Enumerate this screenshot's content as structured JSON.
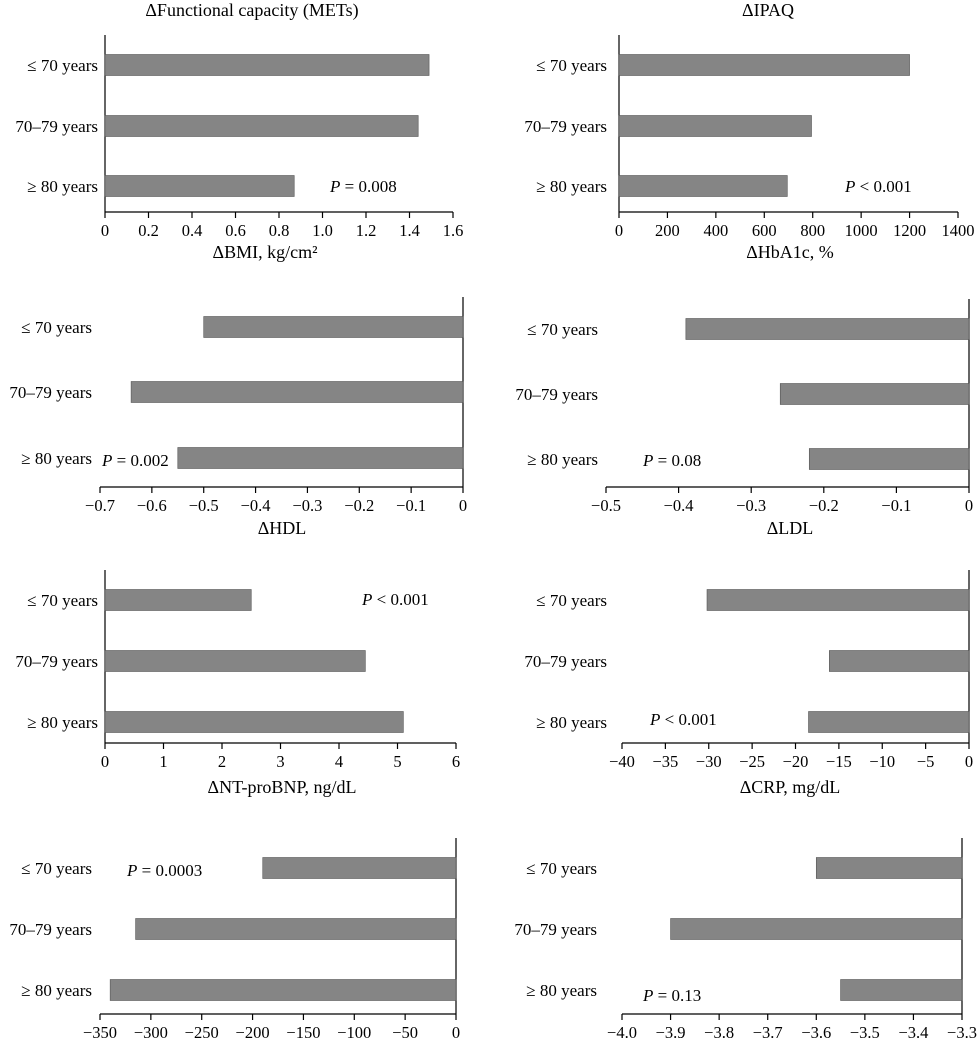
{
  "colors": {
    "bar": "#858585",
    "bar_stroke": "#555555",
    "axis": "#000000"
  },
  "chart_data": [
    {
      "type": "bar",
      "orientation": "horizontal",
      "title": "ΔFunctional capacity (METs)",
      "xlabel": "",
      "categories": [
        "≤ 70 years",
        "70–79 years",
        "≥ 80 years"
      ],
      "values": [
        1.49,
        1.44,
        0.87
      ],
      "xlim": [
        0,
        1.6
      ],
      "ticks": [
        0,
        0.2,
        0.4,
        0.6,
        0.8,
        1.0,
        1.2,
        1.4,
        1.6
      ],
      "tick_labels": [
        "0",
        "0.2",
        "0.4",
        "0.6",
        "0.8",
        "1.0",
        "1.2",
        "1.4",
        "1.6"
      ],
      "p_prefix": "P",
      "p_suffix": " = 0.008"
    },
    {
      "type": "bar",
      "orientation": "horizontal",
      "title": "ΔIPAQ",
      "xlabel": "",
      "categories": [
        "≤ 70 years",
        "70–79 years",
        "≥ 80 years"
      ],
      "values": [
        1200,
        795,
        695
      ],
      "xlim": [
        0,
        1400
      ],
      "ticks": [
        0,
        200,
        400,
        600,
        800,
        1000,
        1200,
        1400
      ],
      "tick_labels": [
        "0",
        "200",
        "400",
        "600",
        "800",
        "1000",
        "1200",
        "1400"
      ],
      "p_prefix": "P",
      "p_suffix": " < 0.001"
    },
    {
      "type": "bar",
      "orientation": "horizontal",
      "title": "ΔBMI, kg/cm²",
      "xlabel": "",
      "categories": [
        "≤ 70 years",
        "70–79 years",
        "≥ 80 years"
      ],
      "values": [
        -0.5,
        -0.64,
        -0.55
      ],
      "xlim": [
        -0.7,
        0
      ],
      "ticks": [
        -0.7,
        -0.6,
        -0.5,
        -0.4,
        -0.3,
        -0.2,
        -0.1,
        0
      ],
      "tick_labels": [
        "−0.7",
        "−0.6",
        "−0.5",
        "−0.4",
        "−0.3",
        "−0.2",
        "−0.1",
        "0"
      ],
      "p_prefix": "P",
      "p_suffix": " = 0.002"
    },
    {
      "type": "bar",
      "orientation": "horizontal",
      "title": "ΔHbA1c, %",
      "xlabel": "",
      "categories": [
        "≤ 70 years",
        "70–79 years",
        "≥ 80 years"
      ],
      "values": [
        -0.39,
        -0.26,
        -0.22
      ],
      "xlim": [
        -0.5,
        0
      ],
      "ticks": [
        -0.5,
        -0.4,
        -0.3,
        -0.2,
        -0.1,
        0
      ],
      "tick_labels": [
        "−0.5",
        "−0.4",
        "−0.3",
        "−0.2",
        "−0.1",
        "0"
      ],
      "p_prefix": "P",
      "p_suffix": " = 0.08"
    },
    {
      "type": "bar",
      "orientation": "horizontal",
      "title": "ΔHDL",
      "xlabel": "ΔNT-proBNP, ng/dL",
      "categories": [
        "≤ 70 years",
        "70–79 years",
        "≥ 80 years"
      ],
      "values": [
        2.5,
        4.45,
        5.1
      ],
      "xlim": [
        0,
        6
      ],
      "ticks": [
        0,
        1,
        2,
        3,
        4,
        5,
        6
      ],
      "tick_labels": [
        "0",
        "1",
        "2",
        "3",
        "4",
        "5",
        "6"
      ],
      "p_prefix": "P",
      "p_suffix": " < 0.001"
    },
    {
      "type": "bar",
      "orientation": "horizontal",
      "title": "ΔLDL",
      "xlabel": "ΔCRP, mg/dL",
      "categories": [
        "≤ 70 years",
        "70–79 years",
        "≥ 80 years"
      ],
      "values": [
        -30.2,
        -16.1,
        -18.5
      ],
      "xlim": [
        -40,
        0
      ],
      "ticks": [
        -40,
        -35,
        -30,
        -25,
        -20,
        -15,
        -10,
        -5,
        0
      ],
      "tick_labels": [
        "−40",
        "−35",
        "−30",
        "−25",
        "−20",
        "−15",
        "−10",
        "−5",
        "0"
      ],
      "p_prefix": "P",
      "p_suffix": " < 0.001"
    },
    {
      "type": "bar",
      "orientation": "horizontal",
      "title": "",
      "xlabel": "",
      "categories": [
        "≤ 70 years",
        "70–79 years",
        "≥ 80 years"
      ],
      "values": [
        -190,
        -315,
        -340
      ],
      "xlim": [
        -350,
        0
      ],
      "ticks": [
        -350,
        -300,
        -250,
        -200,
        -150,
        -100,
        -50,
        0
      ],
      "tick_labels": [
        "−350",
        "−300",
        "−250",
        "−200",
        "−150",
        "−100",
        "−50",
        "0"
      ],
      "p_prefix": "P",
      "p_suffix": " = 0.0003"
    },
    {
      "type": "bar",
      "orientation": "horizontal",
      "title": "",
      "xlabel": "",
      "categories": [
        "≤ 70 years",
        "70–79 years",
        "≥ 80 years"
      ],
      "values": [
        -3.6,
        -3.9,
        -3.55
      ],
      "xlim": [
        -4.0,
        -3.3
      ],
      "ticks": [
        -4.0,
        -3.9,
        -3.8,
        -3.7,
        -3.6,
        -3.5,
        -3.4,
        -3.3
      ],
      "tick_labels": [
        "−4.0",
        "−3.9",
        "−3.8",
        "−3.7",
        "−3.6",
        "−3.5",
        "−3.4",
        "−3.3"
      ],
      "p_prefix": "P",
      "p_suffix": " = 0.13"
    }
  ]
}
